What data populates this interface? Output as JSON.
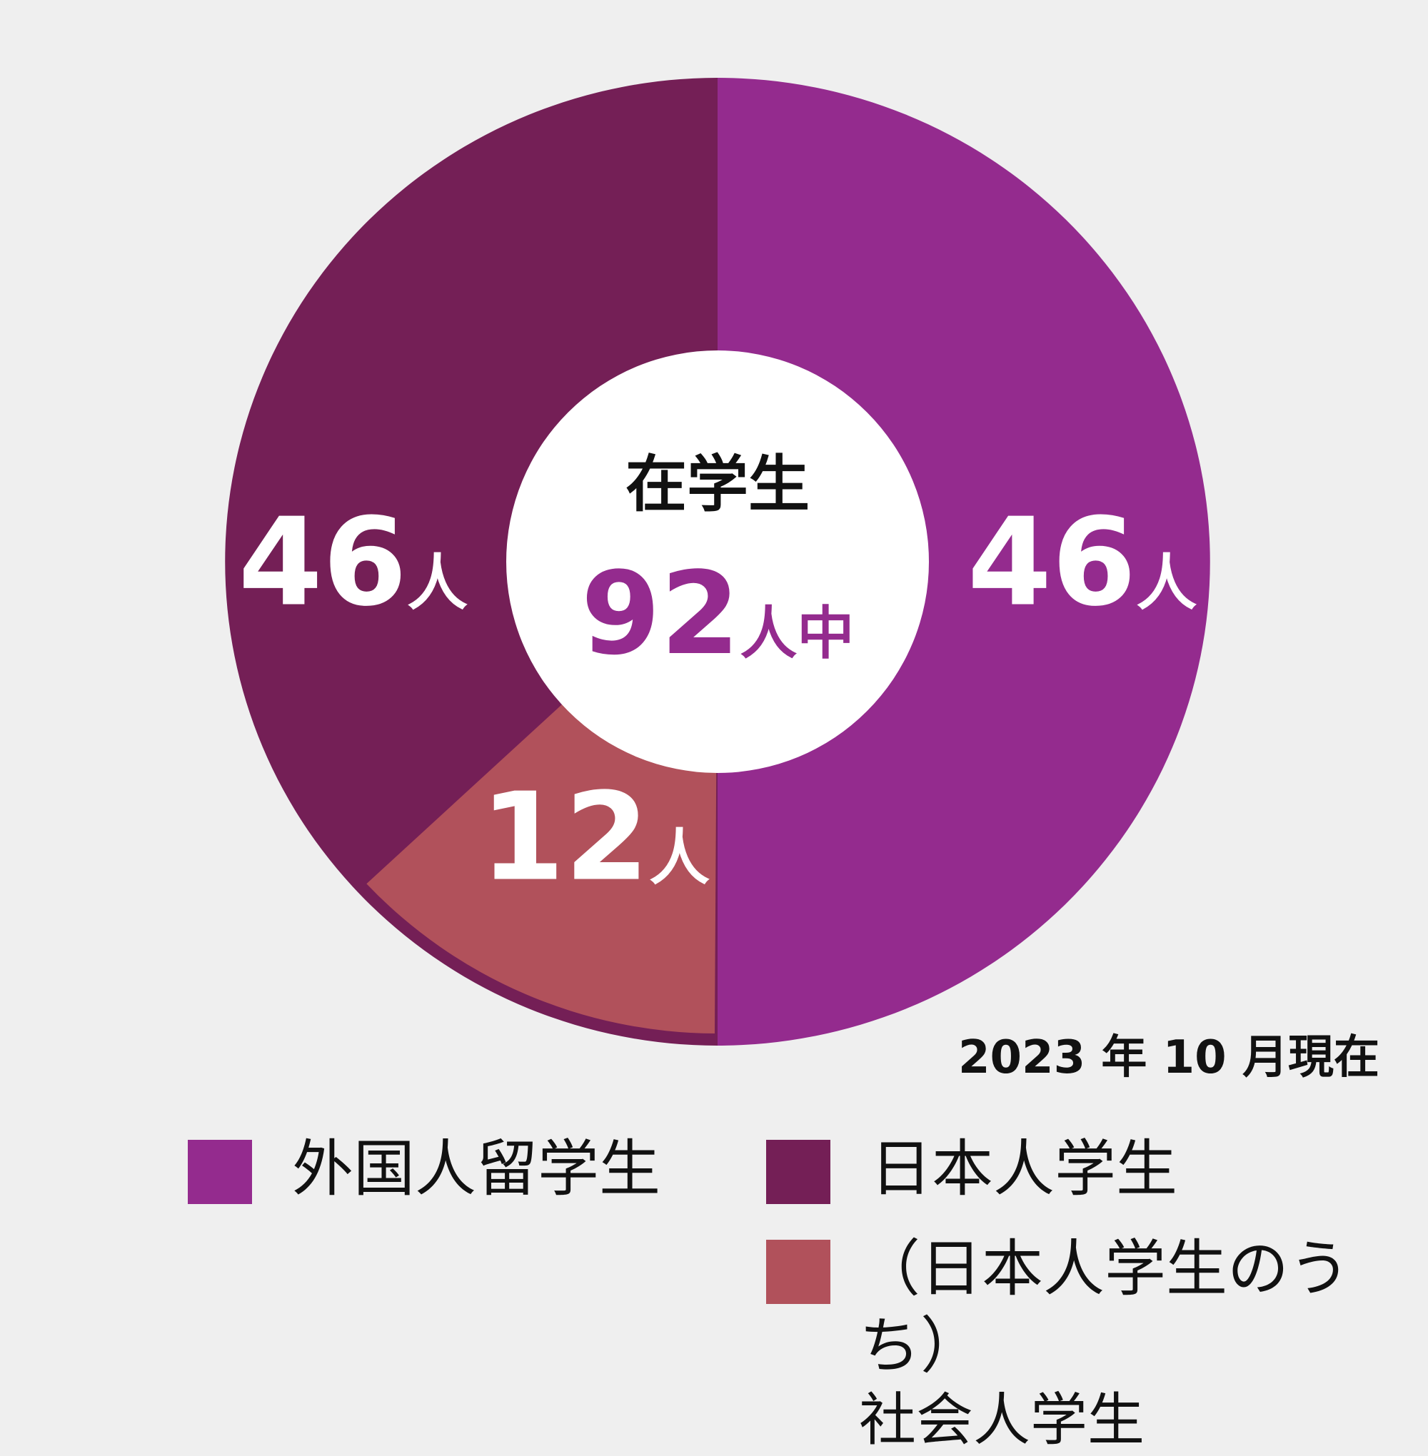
{
  "chart_data": {
    "type": "pie",
    "center_title": "在学生",
    "center_total_value": "92",
    "center_total_unit": "人中",
    "unit": "人",
    "slices": [
      {
        "name": "外国人留学生",
        "value": 46,
        "label": "46",
        "color": "#942b8e"
      },
      {
        "name": "日本人学生",
        "value": 46,
        "label": "46",
        "color": "#741f56"
      }
    ],
    "sub_slice": {
      "name": "（日本人学生のうち）社会人学生",
      "value": 12,
      "label": "12",
      "color": "#b1515b",
      "parent": "日本人学生"
    },
    "legend_placement": "bottom"
  },
  "date_note": "2023 年 10 月現在",
  "legend": [
    {
      "label": "外国人留学生",
      "sub": "",
      "color": "#942b8e"
    },
    {
      "label": "日本人学生",
      "sub": "",
      "color": "#741f56"
    },
    {
      "label": "（日本人学生のうち）",
      "sub": "社会人学生",
      "color": "#b1515b"
    }
  ],
  "colors": {
    "background": "#efefef",
    "center": "#ffffff",
    "label_text": "#ffffff",
    "total_text": "#942b8e"
  }
}
